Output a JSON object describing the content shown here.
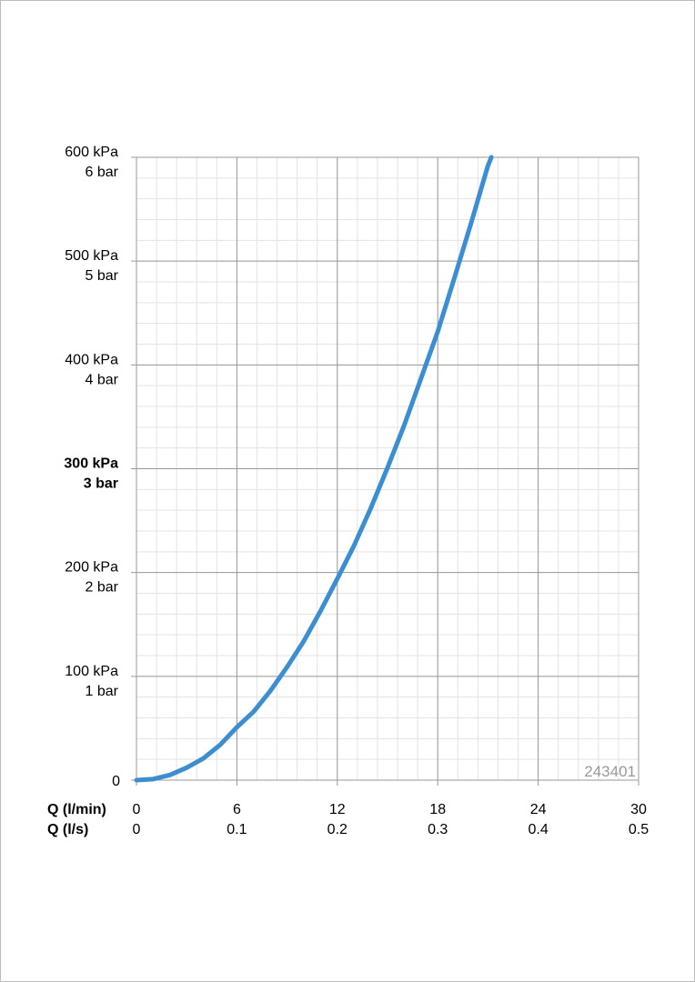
{
  "chart_data": {
    "type": "line",
    "x": [
      0,
      1,
      2,
      3,
      4,
      5,
      6,
      7,
      8,
      9,
      10,
      11,
      12,
      13,
      14,
      15,
      16,
      17,
      18,
      19,
      20,
      21,
      21.2
    ],
    "values": [
      0,
      1,
      5,
      12,
      21,
      34,
      51,
      66,
      86,
      109,
      134,
      163,
      194,
      226,
      262,
      301,
      342,
      387,
      432,
      484,
      537,
      592,
      600
    ],
    "color": "#3a8ed2",
    "xlim": [
      0,
      30
    ],
    "xticks": [
      0,
      6,
      12,
      18,
      24,
      30
    ],
    "xticks2": [
      {
        "value": 0,
        "label": "0"
      },
      {
        "value": 6,
        "label": "0.1"
      },
      {
        "value": 12,
        "label": "0.2"
      },
      {
        "value": 18,
        "label": "0.3"
      },
      {
        "value": 24,
        "label": "0.4"
      },
      {
        "value": 30,
        "label": "0.5"
      }
    ],
    "xlabel": "Q (l/min)",
    "xlabel2": "Q (l/s)",
    "ylim": [
      0,
      600
    ],
    "yticks": [
      {
        "value": 0,
        "label": [
          "0"
        ]
      },
      {
        "value": 100,
        "label": [
          "100 kPa",
          "1 bar"
        ]
      },
      {
        "value": 200,
        "label": [
          "200 kPa",
          "2 bar"
        ]
      },
      {
        "value": 300,
        "label": [
          "300 kPa",
          "3 bar"
        ]
      },
      {
        "value": 400,
        "label": [
          "400 kPa",
          "4 bar"
        ]
      },
      {
        "value": 500,
        "label": [
          "500 kPa",
          "5 bar"
        ]
      },
      {
        "value": 600,
        "label": [
          "600 kPa",
          "6 bar"
        ]
      }
    ],
    "emphasized_ytick": 300,
    "minor_xstep": 1.2,
    "minor_ystep": 20,
    "grid": true,
    "watermark": "243401"
  }
}
